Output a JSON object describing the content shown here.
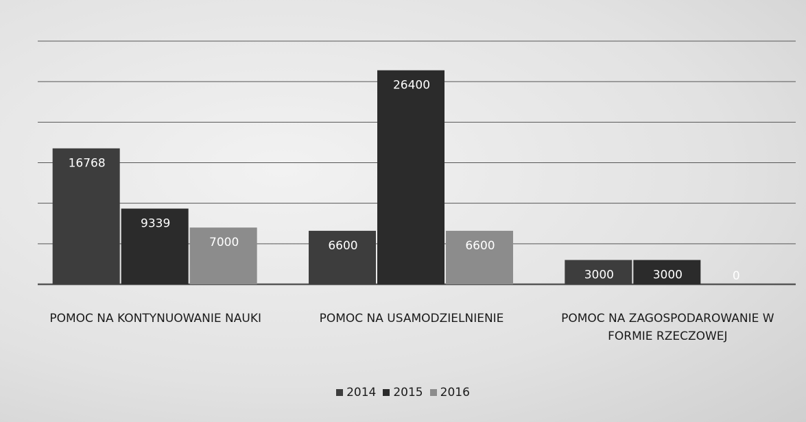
{
  "chart_data": {
    "type": "bar",
    "categories": [
      "POMOC NA KONTYNUOWANIE NAUKI",
      "POMOC NA USAMODZIELNIENIE",
      "POMOC NA ZAGOSPODAROWANIE W FORMIE RZECZOWEJ"
    ],
    "series": [
      {
        "name": "2014",
        "color": "#3d3d3d",
        "values": [
          16768,
          6600,
          3000
        ]
      },
      {
        "name": "2015",
        "color": "#2b2b2b",
        "values": [
          9339,
          26400,
          3000
        ]
      },
      {
        "name": "2016",
        "color": "#8c8c8c",
        "values": [
          7000,
          6600,
          0
        ]
      }
    ],
    "ylim": [
      0,
      30000
    ],
    "yticks": [
      0,
      5000,
      10000,
      15000,
      20000,
      25000,
      30000
    ],
    "grid": true,
    "legend": "bottom"
  }
}
